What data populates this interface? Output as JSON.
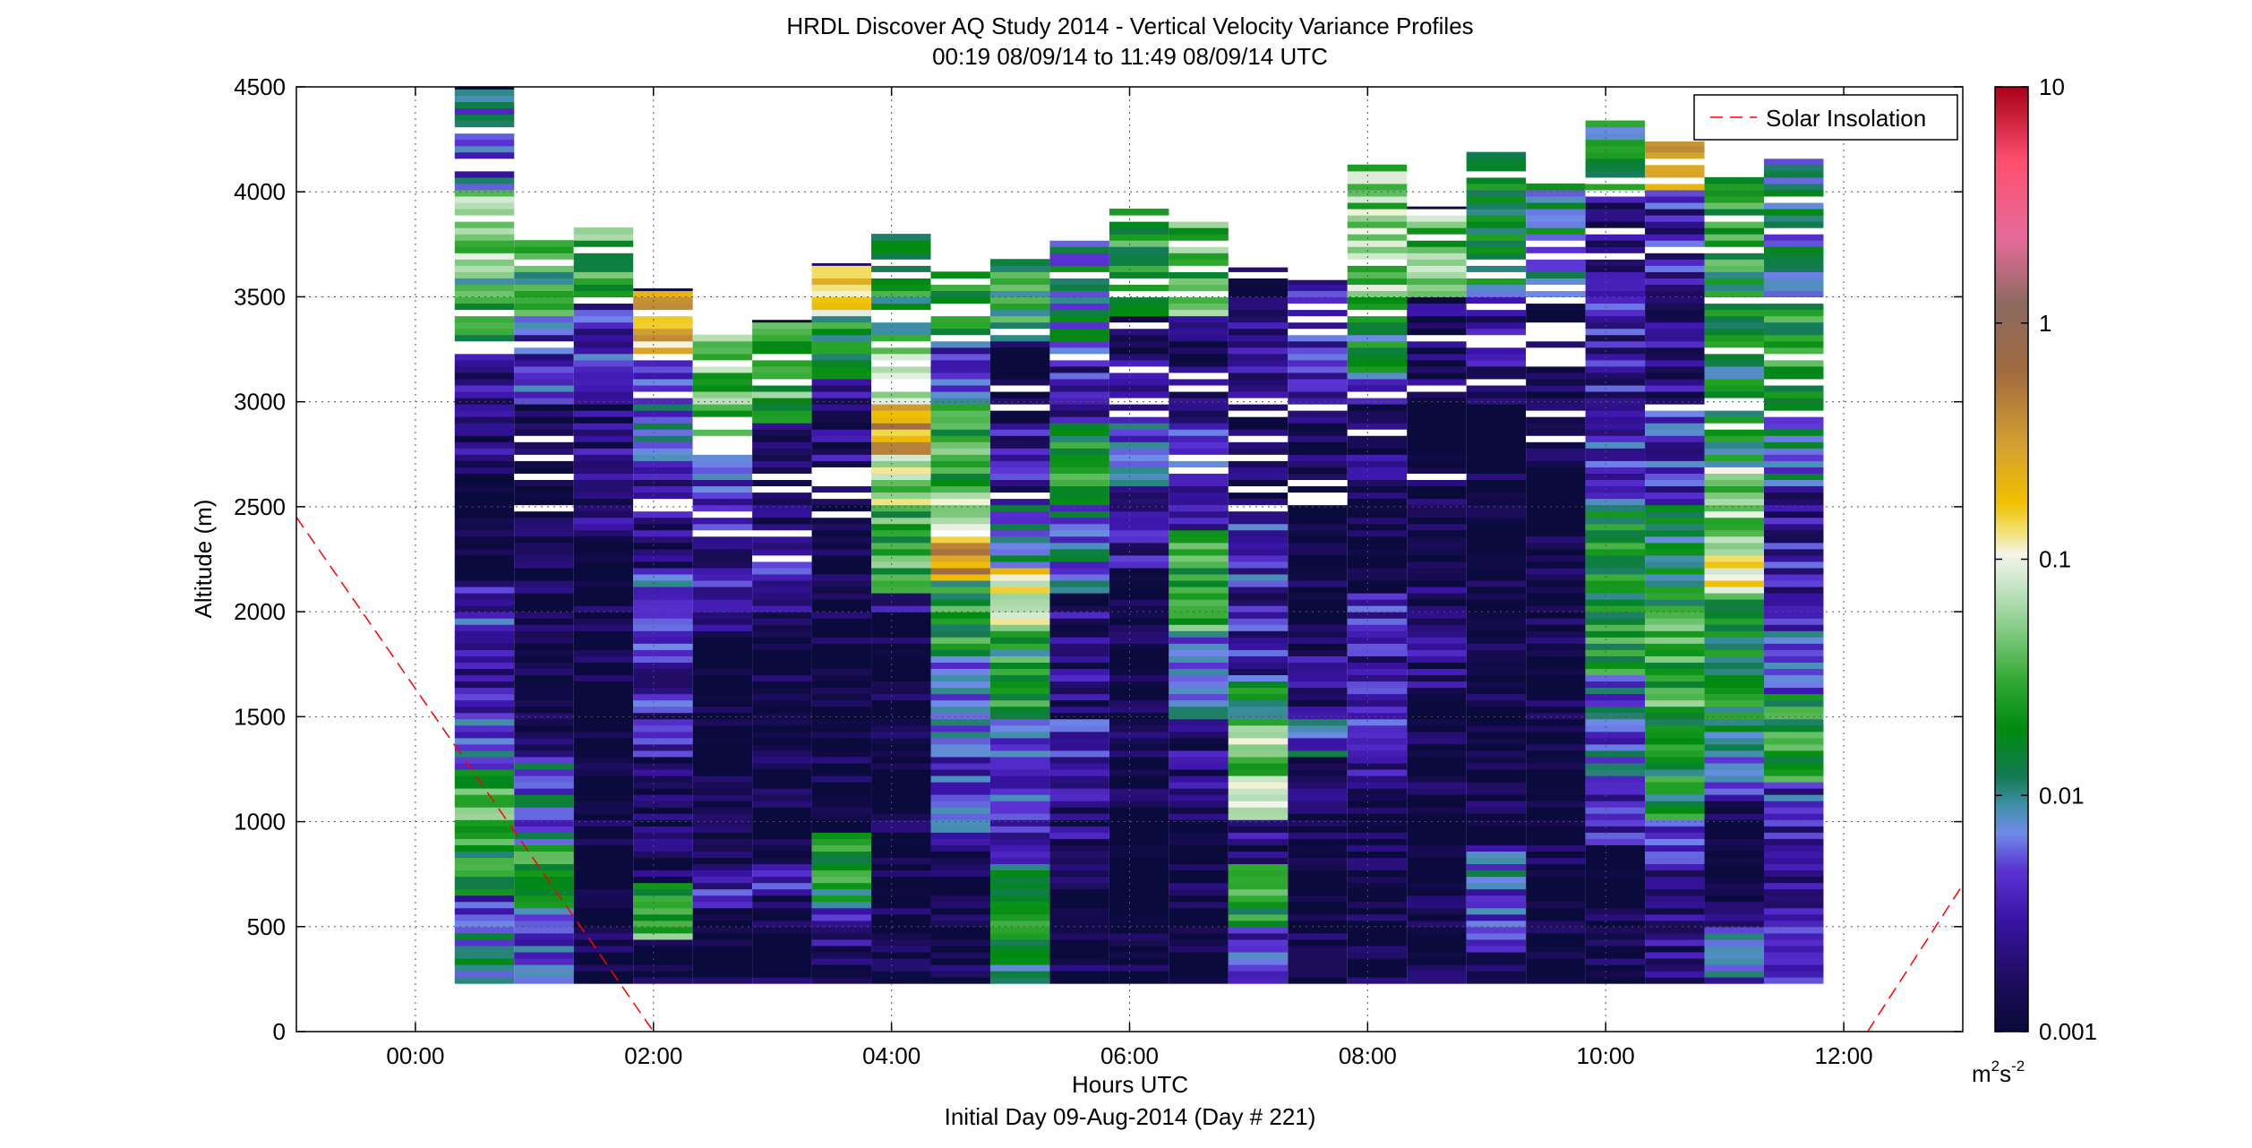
{
  "chart_data": {
    "type": "heatmap",
    "title": "HRDL Discover AQ Study 2014 - Vertical Velocity Variance Profiles",
    "subtitle": "00:19 08/09/14 to 11:49 08/09/14  UTC",
    "xlabel": "Hours UTC",
    "xlabel2": "Initial Day 09-Aug-2014 (Day # 221)",
    "ylabel": "Altitude (m)",
    "xlim": [
      -1.0,
      13.0
    ],
    "ylim": [
      0,
      4500
    ],
    "grid": true,
    "x_ticks": [
      0,
      2,
      4,
      6,
      8,
      10,
      12
    ],
    "x_tick_labels": [
      "00:00",
      "02:00",
      "04:00",
      "06:00",
      "08:00",
      "10:00",
      "12:00"
    ],
    "y_ticks": [
      0,
      500,
      1000,
      1500,
      2000,
      2500,
      3000,
      3500,
      4000,
      4500
    ],
    "y_tick_labels": [
      "0",
      "500",
      "1000",
      "1500",
      "2000",
      "2500",
      "3000",
      "3500",
      "4000",
      "4500"
    ],
    "colorbar": {
      "scale": "log",
      "range": [
        0.001,
        10
      ],
      "ticks": [
        0.001,
        0.01,
        0.1,
        1,
        10
      ],
      "tick_labels": [
        "0.001",
        "0.01",
        "0.1",
        "1",
        "10"
      ],
      "unit_base": "m",
      "unit_sup1": "2",
      "unit_mid": "s",
      "unit_sup2": "-2"
    },
    "legend": {
      "placement": "top-right",
      "entries": [
        {
          "label": "Solar Insolation",
          "color": "#ff0000",
          "style": "dashed"
        }
      ]
    },
    "solar_insolation_line": [
      {
        "segment": [
          [
            -1.0,
            2450
          ],
          [
            2.0,
            0
          ]
        ]
      },
      {
        "segment": [
          [
            12.2,
            0
          ],
          [
            13.0,
            700
          ]
        ]
      }
    ],
    "profile_bottom_altitude": 230,
    "profiles": [
      {
        "center": 0.58,
        "top": 4500,
        "layers": [
          [
            230,
            480,
            0.008
          ],
          [
            480,
            650,
            0.004
          ],
          [
            650,
            900,
            0.02
          ],
          [
            900,
            1250,
            0.03
          ],
          [
            1250,
            1500,
            0.005
          ],
          [
            1500,
            1900,
            0.003
          ],
          [
            1900,
            2150,
            0.004
          ],
          [
            2150,
            2700,
            0.001
          ],
          [
            2700,
            3300,
            0.002
          ],
          [
            3300,
            3600,
            0.02
          ],
          [
            3600,
            4000,
            0.05
          ],
          [
            4000,
            4500,
            0.006
          ]
        ]
      },
      {
        "center": 1.08,
        "top": 3770,
        "layers": [
          [
            230,
            600,
            0.006
          ],
          [
            600,
            900,
            0.02
          ],
          [
            900,
            1300,
            0.007
          ],
          [
            1300,
            2000,
            0.001
          ],
          [
            2000,
            3000,
            0.0012
          ],
          [
            3000,
            3400,
            0.004
          ],
          [
            3400,
            3770,
            0.02
          ]
        ]
      },
      {
        "center": 1.58,
        "top": 3830,
        "layers": [
          [
            230,
            800,
            0.0012
          ],
          [
            800,
            1500,
            0.001
          ],
          [
            1500,
            2400,
            0.001
          ],
          [
            2400,
            3000,
            0.002
          ],
          [
            3000,
            3500,
            0.004
          ],
          [
            3500,
            3830,
            0.03
          ]
        ]
      },
      {
        "center": 2.08,
        "top": 3540,
        "layers": [
          [
            230,
            450,
            0.001
          ],
          [
            450,
            700,
            0.03
          ],
          [
            700,
            1300,
            0.0015
          ],
          [
            1300,
            1800,
            0.003
          ],
          [
            1800,
            2200,
            0.005
          ],
          [
            2200,
            2700,
            0.002
          ],
          [
            2700,
            3200,
            0.006
          ],
          [
            3200,
            3540,
            0.2
          ]
        ]
      },
      {
        "center": 2.58,
        "top": 3320,
        "layers": [
          [
            230,
            600,
            0.001
          ],
          [
            600,
            800,
            0.003
          ],
          [
            800,
            1900,
            0.001
          ],
          [
            1900,
            2300,
            0.003
          ],
          [
            2300,
            2800,
            0.005
          ],
          [
            2800,
            3320,
            0.04
          ]
        ]
      },
      {
        "center": 3.08,
        "top": 3390,
        "layers": [
          [
            230,
            650,
            0.001
          ],
          [
            650,
            800,
            0.004
          ],
          [
            800,
            2000,
            0.001
          ],
          [
            2000,
            2400,
            0.004
          ],
          [
            2400,
            2900,
            0.0012
          ],
          [
            2900,
            3390,
            0.03
          ]
        ]
      },
      {
        "center": 3.58,
        "top": 3660,
        "layers": [
          [
            230,
            400,
            0.0012
          ],
          [
            400,
            600,
            0.003
          ],
          [
            600,
            950,
            0.02
          ],
          [
            950,
            2600,
            0.001
          ],
          [
            2600,
            3100,
            0.002
          ],
          [
            3100,
            3400,
            0.02
          ],
          [
            3400,
            3660,
            0.15
          ]
        ]
      },
      {
        "center": 4.08,
        "top": 3800,
        "layers": [
          [
            230,
            2000,
            0.001
          ],
          [
            2000,
            2100,
            0.003
          ],
          [
            2100,
            2500,
            0.03
          ],
          [
            2500,
            2750,
            0.06
          ],
          [
            2750,
            3000,
            0.3
          ],
          [
            3000,
            3300,
            0.06
          ],
          [
            3300,
            3800,
            0.02
          ]
        ]
      },
      {
        "center": 4.58,
        "top": 3620,
        "layers": [
          [
            230,
            900,
            0.001
          ],
          [
            900,
            1300,
            0.004
          ],
          [
            1300,
            1800,
            0.008
          ],
          [
            1800,
            2150,
            0.02
          ],
          [
            2150,
            2350,
            0.3
          ],
          [
            2350,
            2600,
            0.08
          ],
          [
            2600,
            3000,
            0.03
          ],
          [
            3000,
            3300,
            0.005
          ],
          [
            3300,
            3620,
            0.02
          ]
        ]
      },
      {
        "center": 5.08,
        "top": 3680,
        "layers": [
          [
            230,
            800,
            0.015
          ],
          [
            800,
            1100,
            0.003
          ],
          [
            1100,
            1500,
            0.006
          ],
          [
            1500,
            1900,
            0.02
          ],
          [
            1900,
            2200,
            0.1
          ],
          [
            2200,
            2500,
            0.008
          ],
          [
            2500,
            2900,
            0.003
          ],
          [
            2900,
            3300,
            0.001
          ],
          [
            3300,
            3680,
            0.02
          ]
        ]
      },
      {
        "center": 5.58,
        "top": 3800,
        "layers": [
          [
            230,
            800,
            0.001
          ],
          [
            800,
            1200,
            0.002
          ],
          [
            1200,
            1500,
            0.004
          ],
          [
            1500,
            2100,
            0.002
          ],
          [
            2100,
            2500,
            0.008
          ],
          [
            2500,
            2900,
            0.02
          ],
          [
            2900,
            3200,
            0.003
          ],
          [
            3200,
            3800,
            0.01
          ]
        ]
      },
      {
        "center": 6.08,
        "top": 3920,
        "layers": [
          [
            230,
            2200,
            0.001
          ],
          [
            2200,
            2600,
            0.003
          ],
          [
            2600,
            2900,
            0.006
          ],
          [
            2900,
            3400,
            0.002
          ],
          [
            3400,
            3920,
            0.02
          ]
        ]
      },
      {
        "center": 6.58,
        "top": 3870,
        "layers": [
          [
            230,
            1000,
            0.001
          ],
          [
            1000,
            1500,
            0.002
          ],
          [
            1500,
            1900,
            0.006
          ],
          [
            1900,
            2400,
            0.03
          ],
          [
            2400,
            2600,
            0.004
          ],
          [
            2600,
            2900,
            0.007
          ],
          [
            2900,
            3400,
            0.0015
          ],
          [
            3400,
            3870,
            0.03
          ]
        ]
      },
      {
        "center": 7.08,
        "top": 3640,
        "layers": [
          [
            230,
            500,
            0.004
          ],
          [
            500,
            800,
            0.02
          ],
          [
            800,
            1000,
            0.002
          ],
          [
            1000,
            1500,
            0.05
          ],
          [
            1500,
            1700,
            0.015
          ],
          [
            1700,
            2100,
            0.003
          ],
          [
            2100,
            2500,
            0.004
          ],
          [
            2500,
            3000,
            0.0012
          ],
          [
            3000,
            3640,
            0.002
          ]
        ]
      },
      {
        "center": 7.58,
        "top": 3580,
        "layers": [
          [
            230,
            1100,
            0.001
          ],
          [
            1100,
            1300,
            0.002
          ],
          [
            1300,
            1500,
            0.006
          ],
          [
            1500,
            1800,
            0.002
          ],
          [
            1800,
            2600,
            0.001
          ],
          [
            2600,
            3000,
            0.0012
          ],
          [
            3000,
            3580,
            0.003
          ]
        ]
      },
      {
        "center": 8.08,
        "top": 4130,
        "layers": [
          [
            230,
            1100,
            0.001
          ],
          [
            1100,
            1400,
            0.002
          ],
          [
            1400,
            2100,
            0.003
          ],
          [
            2100,
            2600,
            0.001
          ],
          [
            2600,
            3100,
            0.002
          ],
          [
            3100,
            3500,
            0.015
          ],
          [
            3500,
            4130,
            0.05
          ]
        ]
      },
      {
        "center": 8.58,
        "top": 3930,
        "layers": [
          [
            230,
            1600,
            0.001
          ],
          [
            1600,
            1900,
            0.002
          ],
          [
            1900,
            2200,
            0.0015
          ],
          [
            2200,
            3000,
            0.001
          ],
          [
            3000,
            3500,
            0.0015
          ],
          [
            3500,
            3930,
            0.04
          ]
        ]
      },
      {
        "center": 9.08,
        "top": 4190,
        "layers": [
          [
            230,
            450,
            0.002
          ],
          [
            450,
            700,
            0.004
          ],
          [
            700,
            850,
            0.006
          ],
          [
            850,
            900,
            0.003
          ],
          [
            900,
            2000,
            0.001
          ],
          [
            2000,
            3000,
            0.001
          ],
          [
            3000,
            3500,
            0.003
          ],
          [
            3500,
            4190,
            0.012
          ]
        ]
      },
      {
        "center": 9.58,
        "top": 4040,
        "layers": [
          [
            230,
            3000,
            0.001
          ],
          [
            3000,
            3500,
            0.0012
          ],
          [
            3500,
            4040,
            0.01
          ]
        ]
      },
      {
        "center": 10.08,
        "top": 4340,
        "layers": [
          [
            230,
            900,
            0.001
          ],
          [
            900,
            1200,
            0.003
          ],
          [
            1200,
            1700,
            0.006
          ],
          [
            1700,
            2500,
            0.02
          ],
          [
            2500,
            3000,
            0.004
          ],
          [
            3000,
            3500,
            0.003
          ],
          [
            3500,
            4000,
            0.002
          ],
          [
            4000,
            4340,
            0.015
          ]
        ]
      },
      {
        "center": 10.58,
        "top": 4240,
        "layers": [
          [
            230,
            600,
            0.002
          ],
          [
            600,
            1000,
            0.003
          ],
          [
            1000,
            1500,
            0.02
          ],
          [
            1500,
            2000,
            0.03
          ],
          [
            2000,
            2500,
            0.015
          ],
          [
            2500,
            3000,
            0.004
          ],
          [
            3000,
            3500,
            0.002
          ],
          [
            3500,
            4000,
            0.003
          ],
          [
            4000,
            4240,
            0.4
          ]
        ]
      },
      {
        "center": 11.08,
        "top": 4070,
        "layers": [
          [
            230,
            500,
            0.005
          ],
          [
            500,
            1100,
            0.0012
          ],
          [
            1100,
            1300,
            0.004
          ],
          [
            1300,
            1700,
            0.015
          ],
          [
            1700,
            2100,
            0.02
          ],
          [
            2100,
            2300,
            0.08
          ],
          [
            2300,
            2700,
            0.05
          ],
          [
            2700,
            3400,
            0.015
          ],
          [
            3400,
            4070,
            0.02
          ]
        ]
      },
      {
        "center": 11.58,
        "top": 4190,
        "layers": [
          [
            230,
            500,
            0.003
          ],
          [
            500,
            1000,
            0.003
          ],
          [
            1000,
            1200,
            0.004
          ],
          [
            1200,
            1600,
            0.02
          ],
          [
            1600,
            2000,
            0.005
          ],
          [
            2000,
            2600,
            0.003
          ],
          [
            2600,
            3000,
            0.008
          ],
          [
            3000,
            3500,
            0.02
          ],
          [
            3500,
            4190,
            0.01
          ]
        ]
      }
    ]
  }
}
